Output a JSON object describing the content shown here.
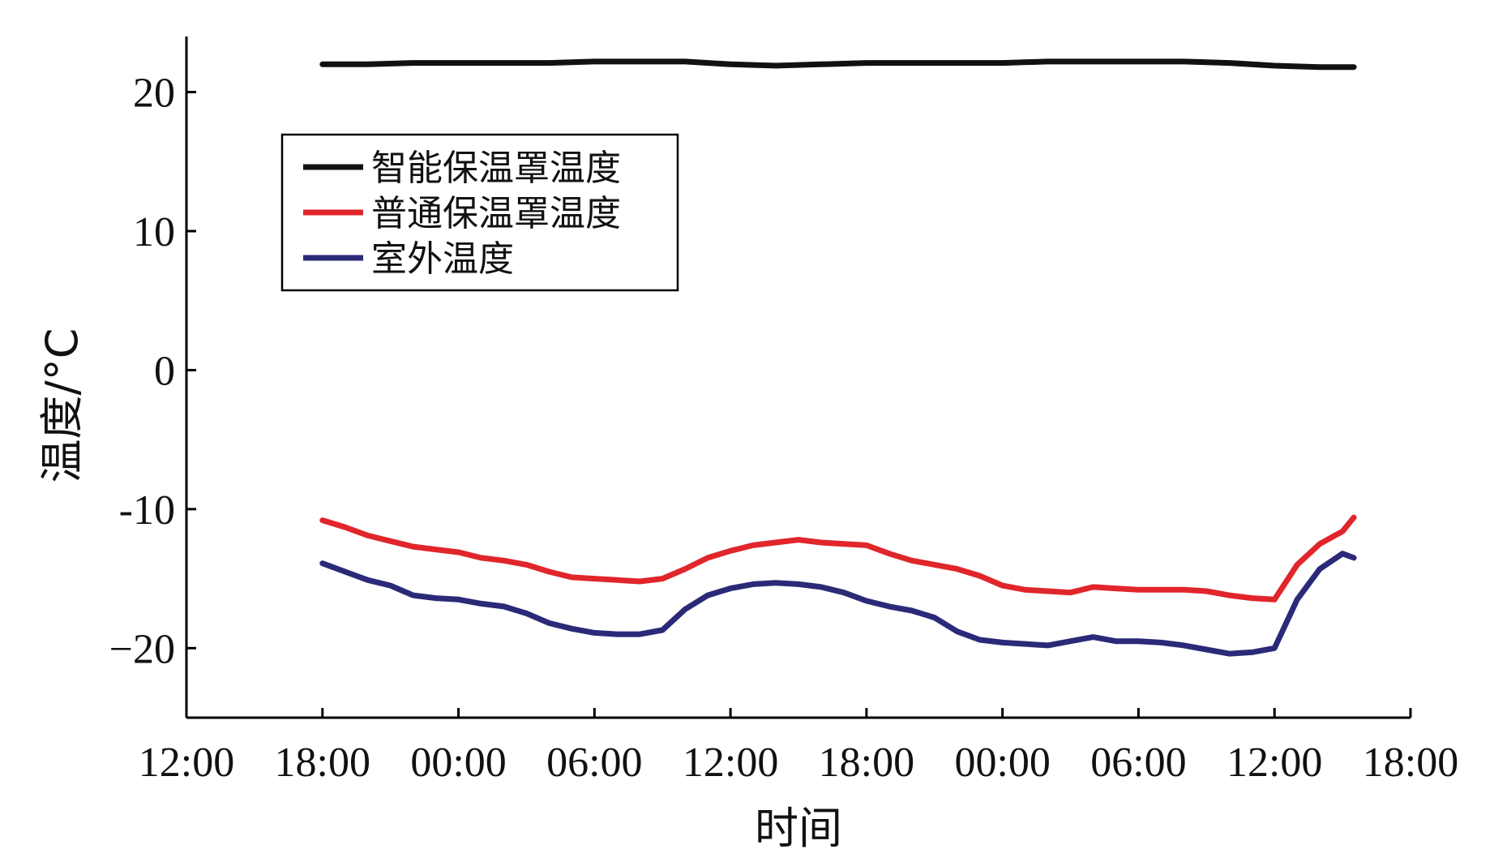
{
  "chart_data": {
    "type": "line",
    "title": "",
    "xlabel": "时间",
    "ylabel": "温度/°C",
    "ylim": [
      -25,
      24
    ],
    "yticks": [
      20,
      10,
      0,
      -10,
      -20
    ],
    "ytick_labels": [
      "20",
      "10",
      "0",
      "-10",
      "−20"
    ],
    "xlim": [
      0,
      54
    ],
    "xticks": [
      0,
      6,
      12,
      18,
      24,
      30,
      36,
      42,
      48,
      54
    ],
    "xtick_labels": [
      "12:00",
      "18:00",
      "00:00",
      "06:00",
      "12:00",
      "18:00",
      "00:00",
      "06:00",
      "12:00",
      "18:00"
    ],
    "x_unit": "hours since first tick (12:00)",
    "grid": false,
    "legend_position": "upper-left",
    "series": [
      {
        "name": "智能保温罩温度",
        "color": "#111111",
        "x": [
          6,
          8,
          10,
          12,
          14,
          16,
          18,
          20,
          22,
          24,
          26,
          28,
          30,
          32,
          34,
          36,
          38,
          40,
          42,
          44,
          46,
          48,
          50,
          51.5
        ],
        "values": [
          22.0,
          22.0,
          22.1,
          22.1,
          22.1,
          22.1,
          22.2,
          22.2,
          22.2,
          22.0,
          21.9,
          22.0,
          22.1,
          22.1,
          22.1,
          22.1,
          22.2,
          22.2,
          22.2,
          22.2,
          22.1,
          21.9,
          21.8,
          21.8
        ]
      },
      {
        "name": "普通保温罩温度",
        "color": "#e0262b",
        "x": [
          6,
          7,
          8,
          9,
          10,
          11,
          12,
          13,
          14,
          15,
          16,
          17,
          18,
          19,
          20,
          21,
          22,
          23,
          24,
          25,
          26,
          27,
          28,
          29,
          30,
          31,
          32,
          33,
          34,
          35,
          36,
          37,
          38,
          39,
          40,
          41,
          42,
          43,
          44,
          45,
          46,
          47,
          48,
          49,
          50,
          51,
          51.5
        ],
        "values": [
          -10.8,
          -11.3,
          -11.9,
          -12.3,
          -12.7,
          -12.9,
          -13.1,
          -13.5,
          -13.7,
          -14.0,
          -14.5,
          -14.9,
          -15.0,
          -15.1,
          -15.2,
          -15.0,
          -14.3,
          -13.5,
          -13.0,
          -12.6,
          -12.4,
          -12.2,
          -12.4,
          -12.5,
          -12.6,
          -13.2,
          -13.7,
          -14.0,
          -14.3,
          -14.8,
          -15.5,
          -15.8,
          -15.9,
          -16.0,
          -15.6,
          -15.7,
          -15.8,
          -15.8,
          -15.8,
          -15.9,
          -16.2,
          -16.4,
          -16.5,
          -14.0,
          -12.5,
          -11.6,
          -10.6
        ]
      },
      {
        "name": "室外温度",
        "color": "#2b2a78",
        "x": [
          6,
          7,
          8,
          9,
          10,
          11,
          12,
          13,
          14,
          15,
          16,
          17,
          18,
          19,
          20,
          21,
          22,
          23,
          24,
          25,
          26,
          27,
          28,
          29,
          30,
          31,
          32,
          33,
          34,
          35,
          36,
          37,
          38,
          39,
          40,
          41,
          42,
          43,
          44,
          45,
          46,
          47,
          48,
          49,
          50,
          51,
          51.5
        ],
        "values": [
          -13.9,
          -14.5,
          -15.1,
          -15.5,
          -16.2,
          -16.4,
          -16.5,
          -16.8,
          -17.0,
          -17.5,
          -18.2,
          -18.6,
          -18.9,
          -19.0,
          -19.0,
          -18.7,
          -17.2,
          -16.2,
          -15.7,
          -15.4,
          -15.3,
          -15.4,
          -15.6,
          -16.0,
          -16.6,
          -17.0,
          -17.3,
          -17.8,
          -18.8,
          -19.4,
          -19.6,
          -19.7,
          -19.8,
          -19.5,
          -19.2,
          -19.5,
          -19.5,
          -19.6,
          -19.8,
          -20.1,
          -20.4,
          -20.3,
          -20.0,
          -16.5,
          -14.3,
          -13.2,
          -13.5
        ]
      }
    ]
  }
}
